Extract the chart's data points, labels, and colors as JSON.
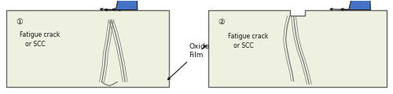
{
  "bg_color": "#ffffff",
  "panel_fill": "#eef0e0",
  "panel_edge": "#666666",
  "probe_fill": "#4472c4",
  "probe_edge": "#222222",
  "crack_color": "#777777",
  "arrow_color": "#111111",
  "text_color": "#111111",
  "figsize": [
    5.0,
    1.2
  ],
  "dpi": 100,
  "label1": "①",
  "label2": "②",
  "crack_label1": "Fatigue crack\n   or SCC",
  "crack_label2": "Fatigue crack\n   or SCC",
  "oxide_label": "Oxide\nFilm"
}
